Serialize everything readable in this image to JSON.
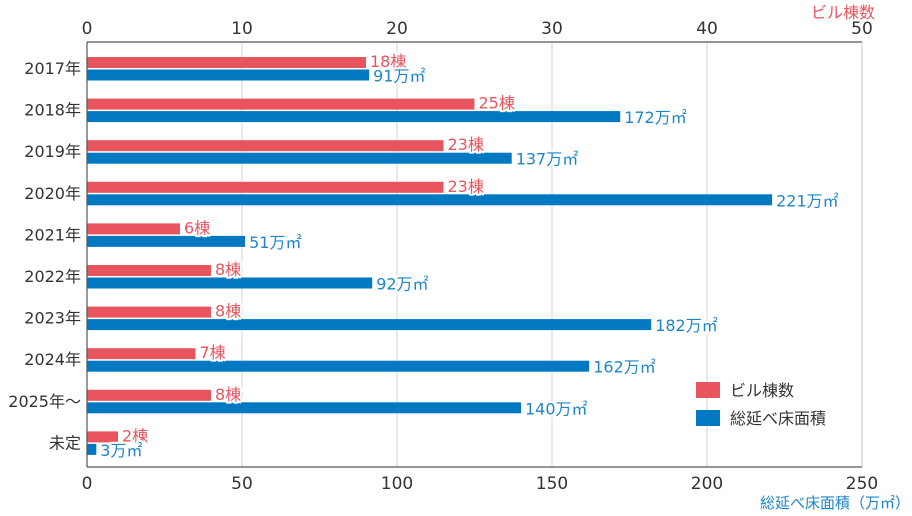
{
  "chart_data": {
    "type": "bar",
    "orientation": "horizontal",
    "categories": [
      "2017年",
      "2018年",
      "2019年",
      "2020年",
      "2021年",
      "2022年",
      "2023年",
      "2024年",
      "2025年〜",
      "未定"
    ],
    "series": [
      {
        "name": "ビル棟数",
        "axis": "top",
        "color": "#e8555f",
        "values": [
          18,
          25,
          23,
          23,
          6,
          8,
          8,
          7,
          8,
          2
        ],
        "labels": [
          "18棟",
          "25棟",
          "23棟",
          "23棟",
          "6棟",
          "8棟",
          "8棟",
          "7棟",
          "8棟",
          "2棟"
        ]
      },
      {
        "name": "総延べ床面積",
        "axis": "bottom",
        "color": "#0079c2",
        "values": [
          91,
          172,
          137,
          221,
          51,
          92,
          182,
          162,
          140,
          3
        ],
        "labels": [
          "91万㎡",
          "172万㎡",
          "137万㎡",
          "221万㎡",
          "51万㎡",
          "92万㎡",
          "182万㎡",
          "162万㎡",
          "140万㎡",
          "3万㎡"
        ]
      }
    ],
    "top_axis": {
      "title": "ビル棟数",
      "range": [
        0,
        50
      ],
      "ticks": [
        "0",
        "10",
        "20",
        "30",
        "40",
        "50"
      ],
      "tick_values": [
        0,
        10,
        20,
        30,
        40,
        50
      ]
    },
    "bottom_axis": {
      "title": "総延べ床面積（万㎡）",
      "range": [
        0,
        250
      ],
      "ticks": [
        "0",
        "50",
        "100",
        "150",
        "200",
        "250"
      ],
      "tick_values": [
        0,
        50,
        100,
        150,
        200,
        250
      ]
    },
    "grid": true,
    "legend": {
      "position": "bottom-right",
      "items": [
        "ビル棟数",
        "総延べ床面積"
      ]
    }
  }
}
